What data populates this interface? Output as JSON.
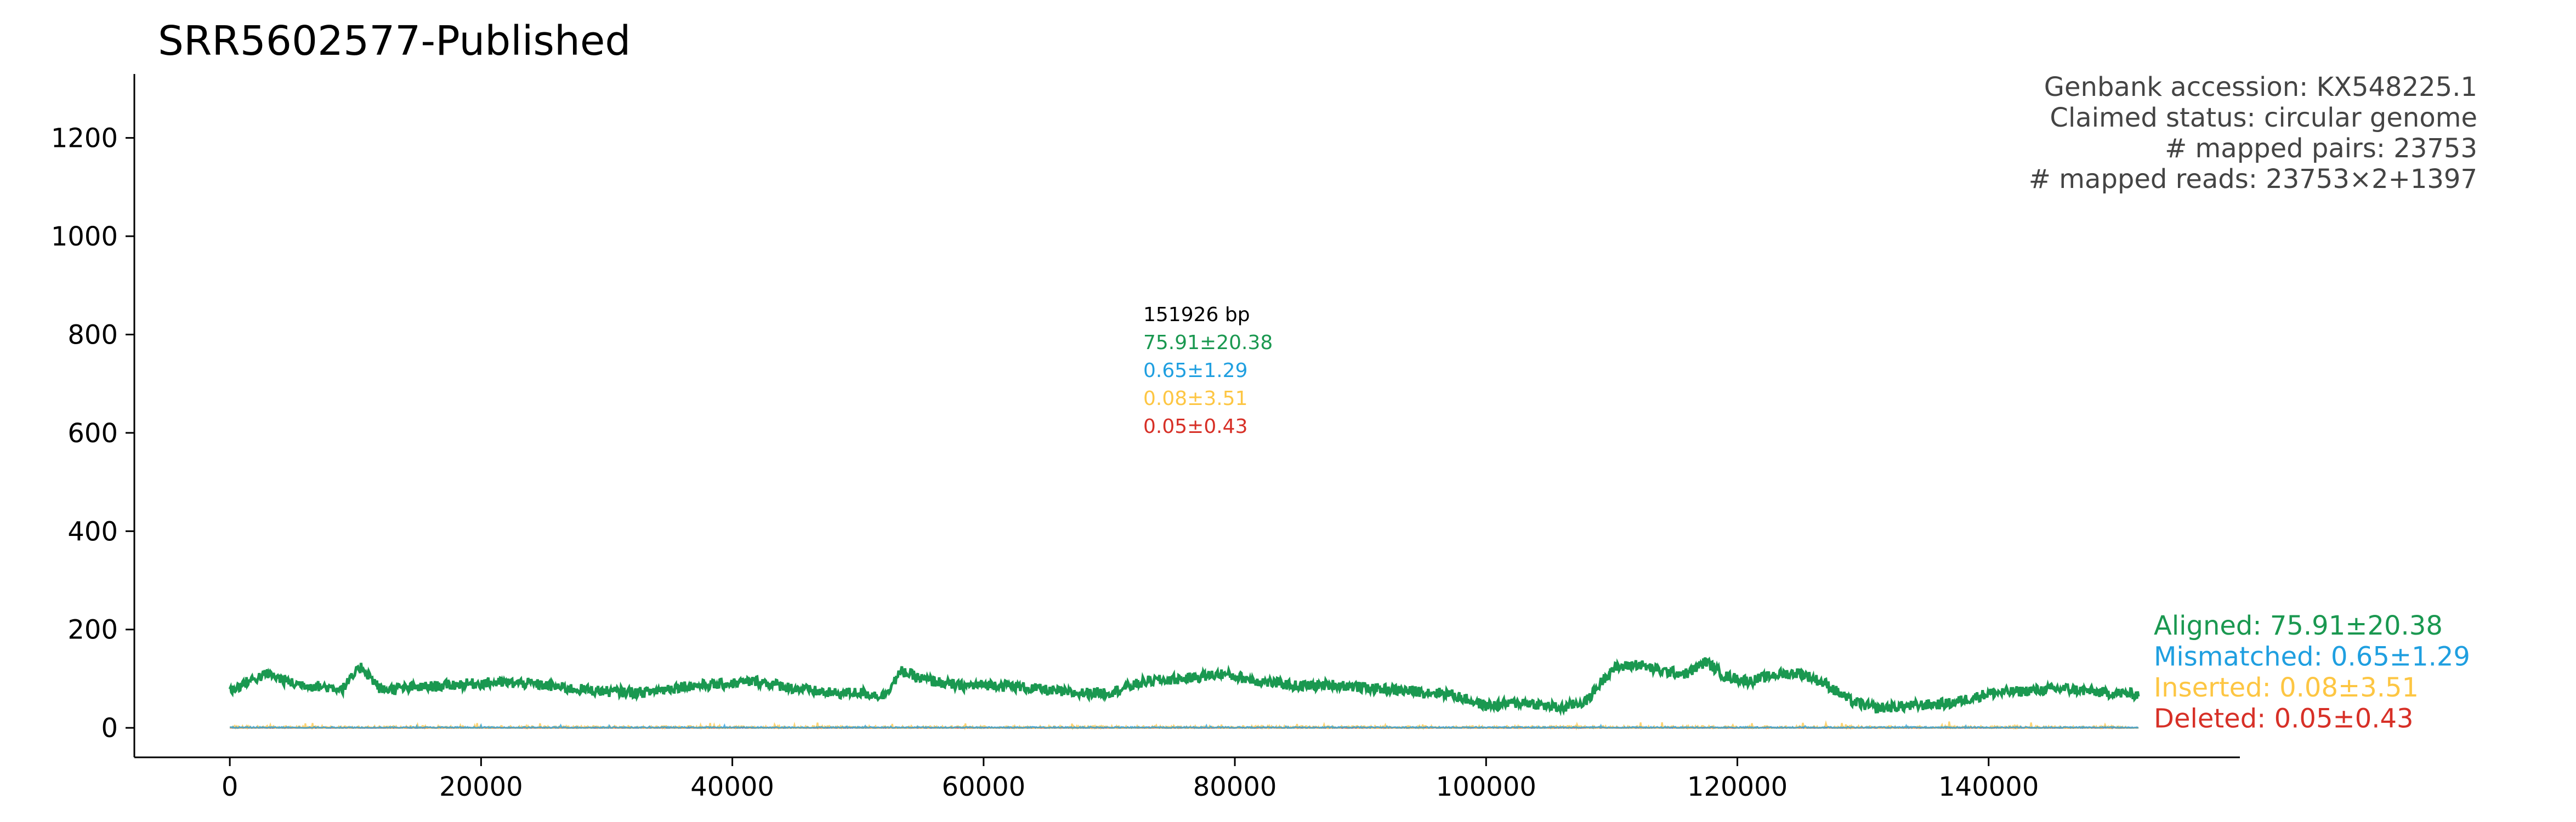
{
  "chart_data": {
    "type": "line",
    "title": "SRR5602577-Published",
    "xlim": [
      -7600,
      160000
    ],
    "ylim": [
      -60,
      1330
    ],
    "x_ticks": [
      0,
      20000,
      40000,
      60000,
      80000,
      100000,
      120000,
      140000
    ],
    "y_ticks": [
      0,
      200,
      400,
      600,
      800,
      1000,
      1200
    ],
    "genome_length_bp": 151926,
    "info_lines": [
      "Genbank accession: KX548225.1",
      "Claimed status: circular genome",
      "# mapped pairs: 23753",
      "# mapped reads: 23753×2+1397"
    ],
    "center_stats": {
      "length": "151926 bp",
      "aligned": "75.91±20.38",
      "mismatched": "0.65±1.29",
      "inserted": "0.08±3.51",
      "deleted": "0.05±0.43"
    },
    "series": [
      {
        "name": "Aligned: 75.91±20.38",
        "color": "#1a9850",
        "mean": 75.91,
        "sd": 20.38,
        "profile_x": [
          0,
          1500,
          3000,
          5000,
          7000,
          9000,
          10500,
          12000,
          15000,
          18000,
          21000,
          24000,
          27000,
          30000,
          33000,
          36000,
          39000,
          42000,
          45000,
          48000,
          50000,
          52000,
          53500,
          55000,
          58000,
          61000,
          64000,
          67000,
          70000,
          73000,
          76000,
          79000,
          82000,
          85000,
          88000,
          91000,
          94000,
          97000,
          100000,
          103000,
          106000,
          108000,
          110000,
          112000,
          114000,
          116000,
          117500,
          119000,
          121000,
          123000,
          125000,
          127000,
          129000,
          131000,
          134000,
          137000,
          140000,
          143000,
          146000,
          149000,
          151926
        ],
        "profile_y": [
          75,
          95,
          110,
          90,
          85,
          80,
          125,
          78,
          82,
          88,
          92,
          90,
          80,
          74,
          72,
          85,
          88,
          95,
          80,
          70,
          72,
          65,
          115,
          100,
          85,
          88,
          80,
          70,
          72,
          95,
          100,
          110,
          95,
          85,
          88,
          80,
          75,
          70,
          45,
          52,
          40,
          55,
          120,
          130,
          115,
          110,
          135,
          105,
          95,
          108,
          112,
          90,
          55,
          40,
          45,
          50,
          70,
          75,
          80,
          72,
          68
        ]
      },
      {
        "name": "Mismatched: 0.65±1.29",
        "color": "#1f9fe0",
        "mean": 0.65,
        "sd": 1.29
      },
      {
        "name": "Inserted: 0.08±3.51",
        "color": "#fdc643",
        "mean": 0.08,
        "sd": 3.51
      },
      {
        "name": "Deleted: 0.05±0.43",
        "color": "#d73027",
        "mean": 0.05,
        "sd": 0.43
      }
    ],
    "legend_position": "right",
    "grid": false
  }
}
